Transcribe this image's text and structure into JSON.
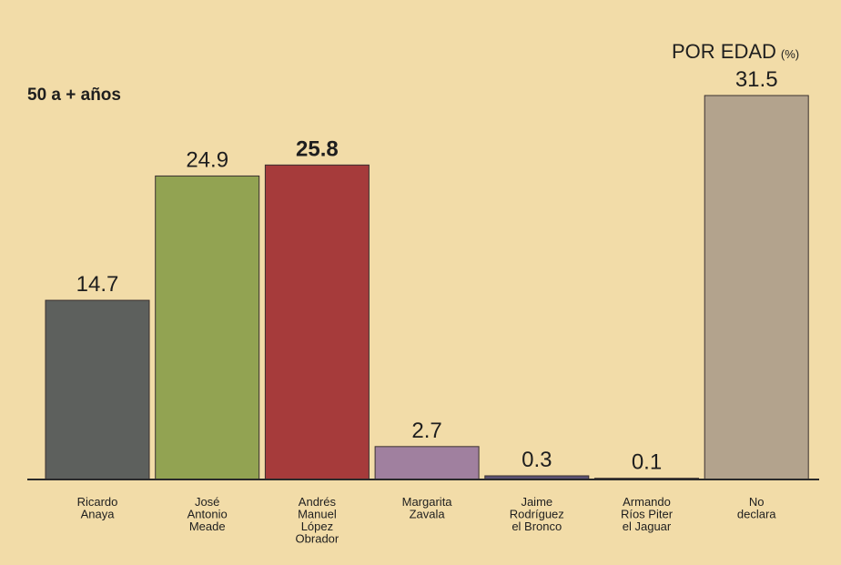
{
  "chart_data": {
    "type": "bar",
    "title": "POR EDAD",
    "title_unit": "(%)",
    "subtitle": "50 a + años",
    "categories": [
      [
        "Ricardo",
        "Anaya"
      ],
      [
        "José",
        "Antonio",
        "Meade"
      ],
      [
        "Andrés",
        "Manuel",
        "López",
        "Obrador"
      ],
      [
        "Margarita",
        "Zavala"
      ],
      [
        "Jaime",
        "Rodríguez",
        "el Bronco"
      ],
      [
        "Armando",
        "Ríos Piter",
        "el Jaguar"
      ],
      [
        "No",
        "declara"
      ]
    ],
    "values": [
      14.7,
      24.9,
      25.8,
      2.7,
      0.3,
      0.1,
      31.5
    ],
    "colors": [
      "#5d605d",
      "#92a352",
      "#a63b3b",
      "#a0809f",
      "#5b5275",
      "#8c3a4c",
      "#b3a38d"
    ],
    "highlight_index": 2
  }
}
